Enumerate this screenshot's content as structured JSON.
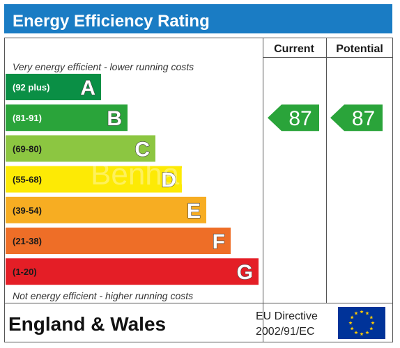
{
  "chart_data": {
    "type": "bar",
    "title": "Energy Efficiency Rating",
    "columns": {
      "current": "Current",
      "potential": "Potential"
    },
    "top_note": "Very energy efficient - lower running costs",
    "bottom_note": "Not energy efficient - higher running costs",
    "bands": [
      {
        "letter": "A",
        "range": "(92 plus)",
        "color": "#0a8f45"
      },
      {
        "letter": "B",
        "range": "(81-91)",
        "color": "#2aa43a"
      },
      {
        "letter": "C",
        "range": "(69-80)",
        "color": "#8cc641"
      },
      {
        "letter": "D",
        "range": "(55-68)",
        "color": "#fdea05"
      },
      {
        "letter": "E",
        "range": "(39-54)",
        "color": "#f7ad22"
      },
      {
        "letter": "F",
        "range": "(21-38)",
        "color": "#ee6e27"
      },
      {
        "letter": "G",
        "range": "(1-20)",
        "color": "#e41e26"
      }
    ],
    "current": {
      "value": 87,
      "band": "B",
      "color": "#2aa43a"
    },
    "potential": {
      "value": 87,
      "band": "B",
      "color": "#2aa43a"
    },
    "footer": {
      "region": "England & Wales",
      "directive_line1": "EU Directive",
      "directive_line2": "2002/91/EC"
    },
    "watermark": "Benham",
    "colors": {
      "header": "#1a7cc4",
      "border": "#555555",
      "eu_blue": "#003399",
      "eu_star": "#ffcc00"
    }
  }
}
